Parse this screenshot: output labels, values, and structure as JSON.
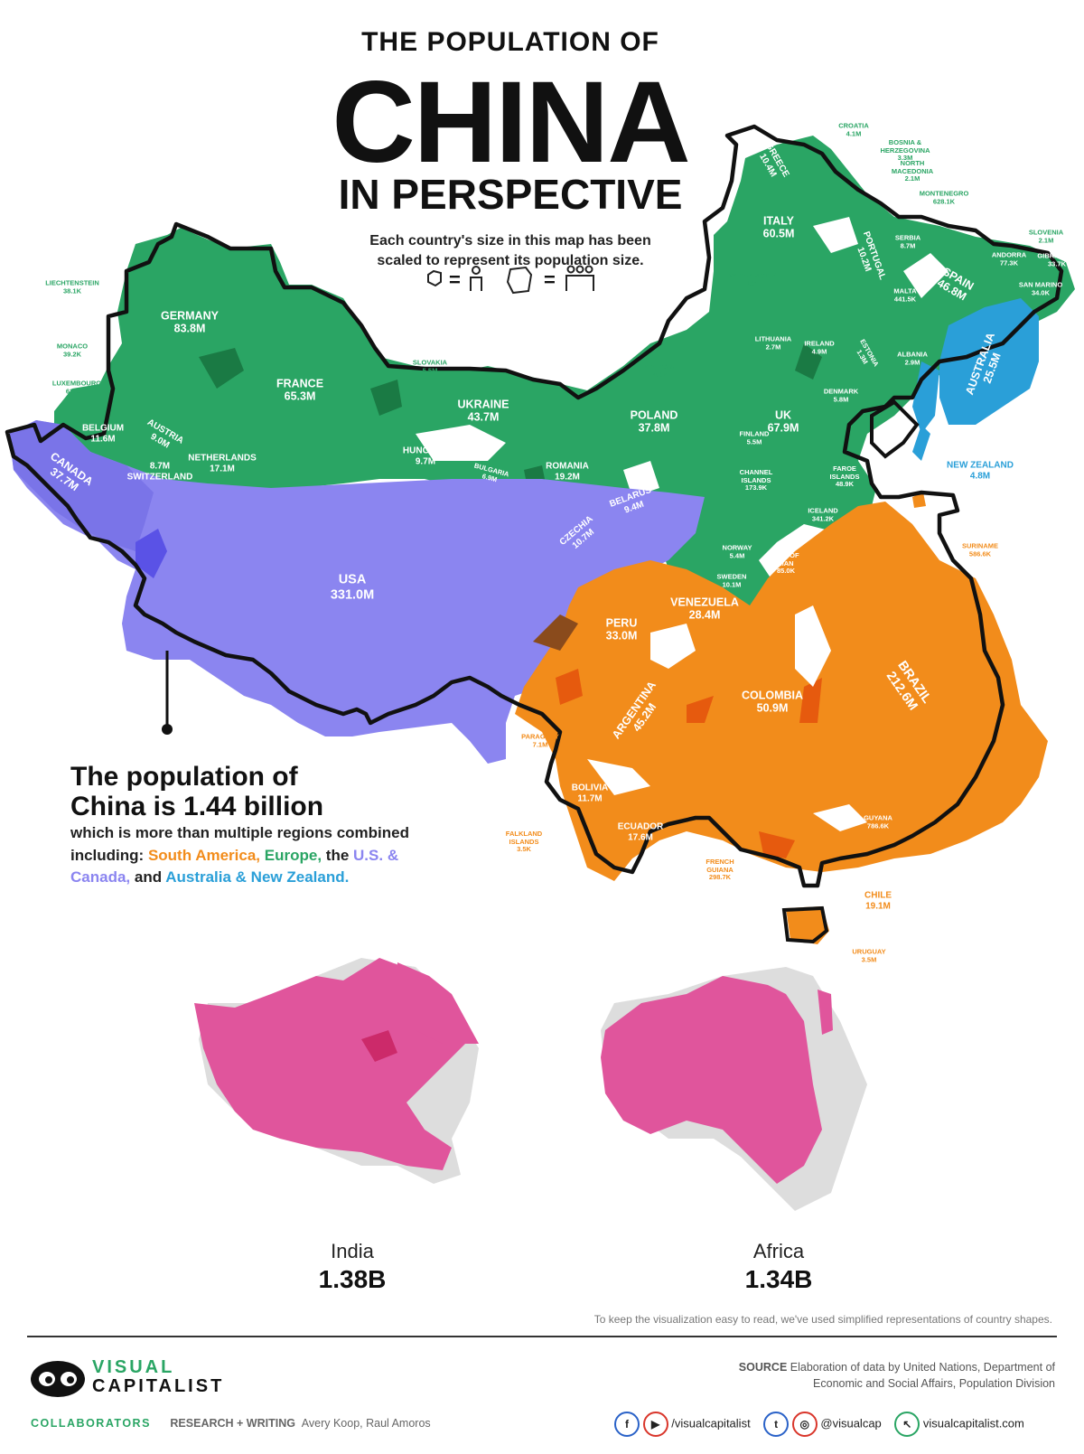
{
  "title": {
    "line1": "THE POPULATION OF",
    "line2": "CHINA",
    "line3": "IN PERSPECTIVE"
  },
  "subtitle": {
    "line1": "Each country's size in this map has been",
    "line2": "scaled to represent its population size."
  },
  "legend": {
    "equals1": "=",
    "equals2": "="
  },
  "colors": {
    "europe": "#2aa564",
    "south_america": "#f28c1b",
    "north_america": "#8b85f0",
    "oceania": "#2a9fd8",
    "india_africa": "#e0559c",
    "china_outline": "#111111",
    "shadow": "#dddddd"
  },
  "countries": {
    "germany": {
      "name": "GERMANY",
      "value": "83.8M"
    },
    "france": {
      "name": "FRANCE",
      "value": "65.3M"
    },
    "italy": {
      "name": "ITALY",
      "value": "60.5M"
    },
    "uk": {
      "name": "UK",
      "value": "67.9M"
    },
    "spain": {
      "name": "SPAIN",
      "value": "46.8M"
    },
    "ukraine": {
      "name": "UKRAINE",
      "value": "43.7M"
    },
    "poland": {
      "name": "POLAND",
      "value": "37.8M"
    },
    "romania": {
      "name": "ROMANIA",
      "value": "19.2M"
    },
    "netherlands": {
      "name": "NETHERLANDS",
      "value": "17.1M"
    },
    "belgium": {
      "name": "BELGIUM",
      "value": "11.6M"
    },
    "czechia": {
      "name": "CZECHIA",
      "value": "10.7M"
    },
    "greece": {
      "name": "GREECE",
      "value": "10.4M"
    },
    "portugal": {
      "name": "PORTUGAL",
      "value": "10.2M"
    },
    "sweden": {
      "name": "SWEDEN",
      "value": "10.1M"
    },
    "hungary": {
      "name": "HUNGARY",
      "value": "9.7M"
    },
    "belarus": {
      "name": "BELARUS",
      "value": "9.4M"
    },
    "austria": {
      "name": "AUSTRIA",
      "value": "9.0M"
    },
    "switzerland": {
      "name": "SWITZERLAND",
      "value": "8.7M"
    },
    "serbia": {
      "name": "SERBIA",
      "value": "8.7M"
    },
    "bulgaria": {
      "name": "BULGARIA",
      "value": "6.9M"
    },
    "denmark": {
      "name": "DENMARK",
      "value": "5.8M"
    },
    "finland": {
      "name": "FINLAND",
      "value": "5.5M"
    },
    "slovakia": {
      "name": "SLOVAKIA",
      "value": "5.5M"
    },
    "norway": {
      "name": "NORWAY",
      "value": "5.4M"
    },
    "ireland": {
      "name": "IRELAND",
      "value": "4.9M"
    },
    "croatia": {
      "name": "CROATIA",
      "value": "4.1M"
    },
    "moldova": {
      "name": "MOLDOVA",
      "value": "4.0M"
    },
    "bosnia": {
      "name": "BOSNIA & HERZEGOVINA",
      "value": "3.3M"
    },
    "albania": {
      "name": "ALBANIA",
      "value": "2.9M"
    },
    "lithuania": {
      "name": "LITHUANIA",
      "value": "2.7M"
    },
    "north_macedonia": {
      "name": "NORTH MACEDONIA",
      "value": "2.1M"
    },
    "slovenia": {
      "name": "SLOVENIA",
      "value": "2.1M"
    },
    "latvia": {
      "name": "LATVIA",
      "value": "1.9M"
    },
    "estonia": {
      "name": "ESTONIA",
      "value": "1.3M"
    },
    "vatican": {
      "name": "VATICAN CITY",
      "value": "801"
    },
    "luxembourg": {
      "name": "LUXEMBOURG",
      "value": "626.0K"
    },
    "montenegro": {
      "name": "MONTENEGRO",
      "value": "628.1K"
    },
    "malta": {
      "name": "MALTA",
      "value": "441.5K"
    },
    "iceland": {
      "name": "ICELAND",
      "value": "341.2K"
    },
    "channel_islands": {
      "name": "CHANNEL ISLANDS",
      "value": "173.9K"
    },
    "isle_of_man": {
      "name": "ISLE OF MAN",
      "value": "85.0K"
    },
    "andorra": {
      "name": "ANDORRA",
      "value": "77.3K"
    },
    "faroe": {
      "name": "FAROE ISLANDS",
      "value": "48.9K"
    },
    "monaco": {
      "name": "MONACO",
      "value": "39.2K"
    },
    "liechtenstein": {
      "name": "LIECHTENSTEIN",
      "value": "38.1K"
    },
    "san_marino": {
      "name": "SAN MARINO",
      "value": "34.0K"
    },
    "gibraltar": {
      "name": "GIBRALTER",
      "value": "33.7K"
    },
    "usa": {
      "name": "USA",
      "value": "331.0M"
    },
    "canada": {
      "name": "CANADA",
      "value": "37.7M"
    },
    "australia": {
      "name": "AUSTRALIA",
      "value": "25.5M"
    },
    "new_zealand": {
      "name": "NEW ZEALAND",
      "value": "4.8M"
    },
    "brazil": {
      "name": "BRAZIL",
      "value": "212.6M"
    },
    "colombia": {
      "name": "COLOMBIA",
      "value": "50.9M"
    },
    "argentina": {
      "name": "ARGENTINA",
      "value": "45.2M"
    },
    "peru": {
      "name": "PERU",
      "value": "33.0M"
    },
    "venezuela": {
      "name": "VENEZUELA",
      "value": "28.4M"
    },
    "chile": {
      "name": "CHILE",
      "value": "19.1M"
    },
    "ecuador": {
      "name": "ECUADOR",
      "value": "17.6M"
    },
    "bolivia": {
      "name": "BOLIVIA",
      "value": "11.7M"
    },
    "paraguay": {
      "name": "PARAGUAY",
      "value": "7.1M"
    },
    "uruguay": {
      "name": "URUGUAY",
      "value": "3.5M"
    },
    "guyana": {
      "name": "GUYANA",
      "value": "786.6K"
    },
    "suriname": {
      "name": "SURINAME",
      "value": "586.6K"
    },
    "french_guiana": {
      "name": "FRENCH GUIANA",
      "value": "298.7K"
    },
    "falkland": {
      "name": "FALKLAND ISLANDS",
      "value": "3.5K"
    }
  },
  "callout": {
    "heading_line1": "The population of",
    "heading_line2": "China is 1.44 billion",
    "body_intro": "which is more than multiple regions combined",
    "body_including": "including:",
    "south_america": "South America,",
    "europe": "Europe,",
    "the": "the",
    "us_canada_1": "U.S. &",
    "us_canada_2": "Canada,",
    "and": "and",
    "aus_nz": "Australia & New Zealand."
  },
  "comparisons": {
    "india": {
      "name": "India",
      "value": "1.38B"
    },
    "africa": {
      "name": "Africa",
      "value": "1.34B"
    }
  },
  "note": "To keep the visualization easy to read, we've used simplified representations of country shapes.",
  "footer": {
    "brand_line1": "VISUAL",
    "brand_line2": "CAPITALIST",
    "source_label": "SOURCE",
    "source_line1": "Elaboration of data by United Nations, Department of",
    "source_line2": "Economic and Social Affairs, Population Division",
    "collaborators_label": "COLLABORATORS",
    "research_label": "RESEARCH + WRITING",
    "authors": "Avery Koop, Raul Amoros",
    "social_handle1": "/visualcapitalist",
    "social_handle2": "@visualcap",
    "website": "visualcapitalist.com",
    "facebook_icon": "f",
    "youtube_icon": "▶",
    "twitter_icon": "t",
    "instagram_icon": "◎",
    "cursor_icon": "↖"
  }
}
